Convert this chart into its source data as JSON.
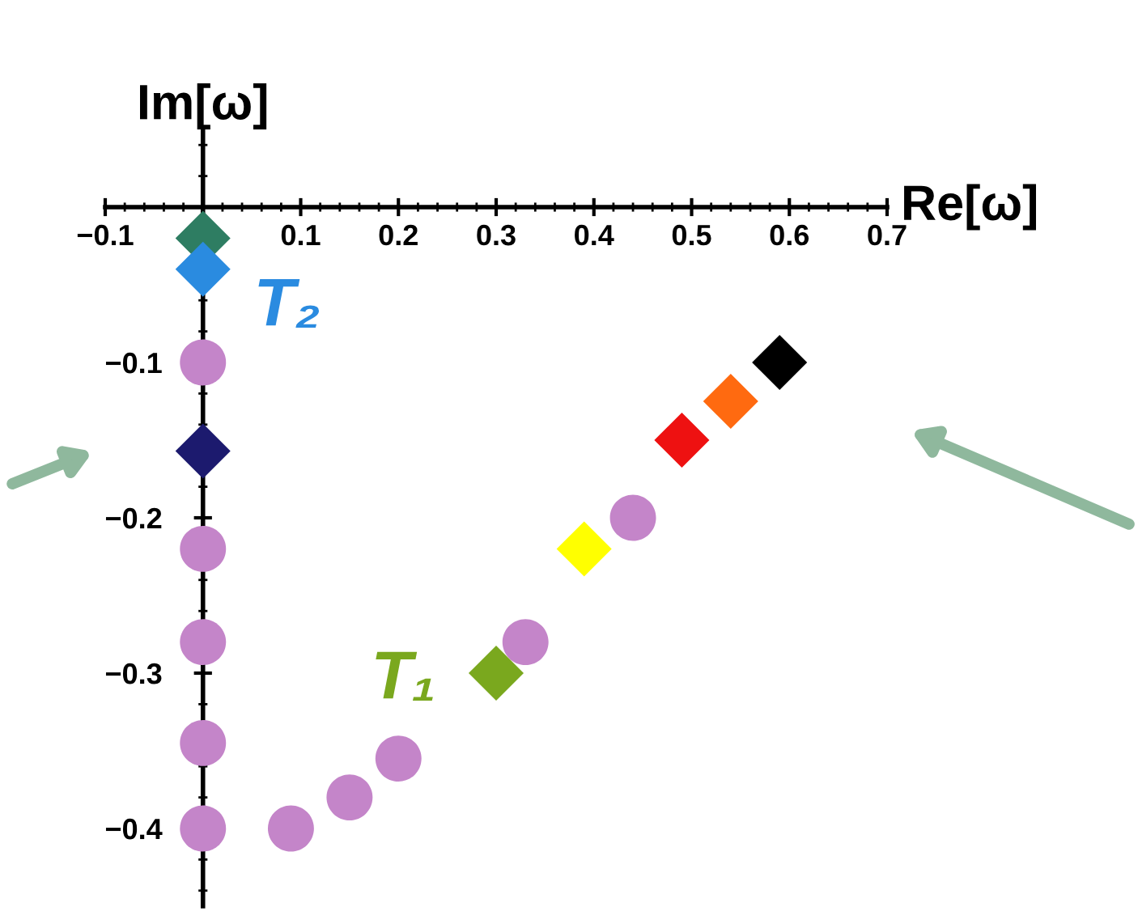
{
  "chart_data": {
    "type": "scatter",
    "xlabel": "Re[ω]",
    "ylabel": "Im[ω]",
    "xlim": [
      -0.1,
      0.7
    ],
    "ylim": [
      -0.45,
      0.05
    ],
    "xticks": [
      {
        "value": -0.1,
        "label": "−0.1"
      },
      0.1,
      0.2,
      0.3,
      0.4,
      0.5,
      0.6,
      0.7
    ],
    "yticks": [
      {
        "value": -0.1,
        "label": "−0.1"
      },
      {
        "value": -0.2,
        "label": "−0.2"
      },
      {
        "value": -0.3,
        "label": "−0.3"
      },
      {
        "value": -0.4,
        "label": "−0.4"
      }
    ],
    "grid": false,
    "legend": false,
    "series": [
      {
        "marker": "circle",
        "color": "#c485c9",
        "x": [
          0,
          0,
          0,
          0,
          0,
          0.09,
          0.15,
          0.2,
          0.33,
          0.44
        ],
        "values": [
          -0.1,
          -0.22,
          -0.28,
          -0.345,
          -0.4,
          -0.4,
          -0.38,
          -0.355,
          -0.28,
          -0.2
        ]
      },
      {
        "marker": "diamond",
        "colors": [
          "#2e7d62",
          "#2a8be0",
          "#1c1a6e",
          "#7aa81e",
          "#ffff00",
          "#ee1111",
          "#ff6a10",
          "#000000"
        ],
        "x": [
          0,
          0,
          0,
          0.3,
          0.39,
          0.49,
          0.54,
          0.59
        ],
        "values": [
          -0.02,
          -0.04,
          -0.157,
          -0.3,
          -0.22,
          -0.15,
          -0.125,
          -0.1
        ]
      }
    ],
    "annotations": [
      "T₂",
      "T₁"
    ]
  }
}
